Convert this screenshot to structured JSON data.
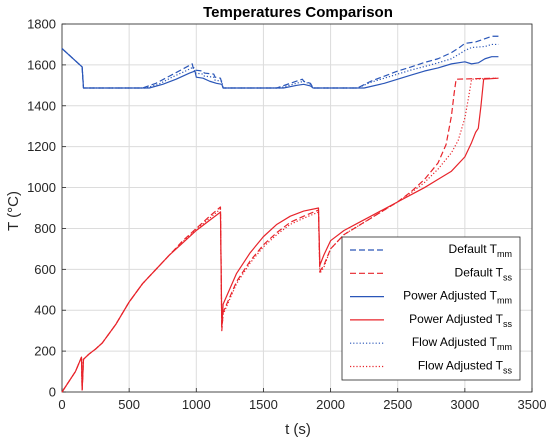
{
  "chart_data": {
    "type": "line",
    "title": "Temperatures Comparison",
    "xlabel": "t (s)",
    "ylabel": "T (°C)",
    "xlim": [
      0,
      3500
    ],
    "ylim": [
      0,
      1800
    ],
    "xticks": [
      0,
      500,
      1000,
      1500,
      2000,
      2500,
      3000,
      3500
    ],
    "yticks": [
      0,
      200,
      400,
      600,
      800,
      1000,
      1200,
      1400,
      1600,
      1800
    ],
    "grid": true,
    "legend_position": "lower-right",
    "colors": {
      "blue": "#2a56b8",
      "red": "#e8242b"
    },
    "series": [
      {
        "name": "Default T",
        "subscript": "mm",
        "color": "blue",
        "dash": "dashed",
        "points": [
          [
            0,
            1680
          ],
          [
            150,
            1590
          ],
          [
            160,
            1487
          ],
          [
            600,
            1487
          ],
          [
            700,
            1510
          ],
          [
            800,
            1545
          ],
          [
            900,
            1580
          ],
          [
            970,
            1605
          ],
          [
            980,
            1575
          ],
          [
            1050,
            1570
          ],
          [
            1060,
            1560
          ],
          [
            1130,
            1555
          ],
          [
            1140,
            1540
          ],
          [
            1180,
            1535
          ],
          [
            1200,
            1487
          ],
          [
            1600,
            1487
          ],
          [
            1700,
            1510
          ],
          [
            1790,
            1530
          ],
          [
            1800,
            1520
          ],
          [
            1850,
            1510
          ],
          [
            1870,
            1487
          ],
          [
            2200,
            1487
          ],
          [
            2300,
            1520
          ],
          [
            2400,
            1545
          ],
          [
            2500,
            1570
          ],
          [
            2600,
            1590
          ],
          [
            2700,
            1612
          ],
          [
            2800,
            1630
          ],
          [
            2900,
            1660
          ],
          [
            2960,
            1685
          ],
          [
            3000,
            1705
          ],
          [
            3080,
            1712
          ],
          [
            3200,
            1740
          ],
          [
            3250,
            1740
          ]
        ]
      },
      {
        "name": "Default T",
        "subscript": "ss",
        "color": "red",
        "dash": "dashed",
        "points": [
          [
            0,
            0
          ],
          [
            50,
            50
          ],
          [
            100,
            100
          ],
          [
            145,
            170
          ],
          [
            150,
            10
          ],
          [
            160,
            160
          ],
          [
            200,
            185
          ],
          [
            250,
            210
          ],
          [
            300,
            240
          ],
          [
            400,
            330
          ],
          [
            500,
            440
          ],
          [
            600,
            530
          ],
          [
            700,
            600
          ],
          [
            800,
            670
          ],
          [
            900,
            740
          ],
          [
            1000,
            800
          ],
          [
            1100,
            860
          ],
          [
            1180,
            905
          ],
          [
            1190,
            300
          ],
          [
            1200,
            390
          ],
          [
            1300,
            540
          ],
          [
            1400,
            640
          ],
          [
            1500,
            720
          ],
          [
            1600,
            780
          ],
          [
            1700,
            830
          ],
          [
            1800,
            860
          ],
          [
            1910,
            890
          ],
          [
            1920,
            590
          ],
          [
            1950,
            620
          ],
          [
            2000,
            700
          ],
          [
            2100,
            770
          ],
          [
            2200,
            810
          ],
          [
            2300,
            850
          ],
          [
            2400,
            890
          ],
          [
            2500,
            930
          ],
          [
            2600,
            980
          ],
          [
            2700,
            1040
          ],
          [
            2800,
            1120
          ],
          [
            2860,
            1210
          ],
          [
            2900,
            1350
          ],
          [
            2920,
            1460
          ],
          [
            2935,
            1530
          ],
          [
            3220,
            1535
          ]
        ]
      },
      {
        "name": "Power Adjusted T",
        "subscript": "mm",
        "color": "blue",
        "dash": "solid",
        "points": [
          [
            0,
            1680
          ],
          [
            150,
            1590
          ],
          [
            160,
            1487
          ],
          [
            650,
            1487
          ],
          [
            750,
            1505
          ],
          [
            850,
            1530
          ],
          [
            950,
            1560
          ],
          [
            990,
            1570
          ],
          [
            1000,
            1540
          ],
          [
            1050,
            1535
          ],
          [
            1100,
            1520
          ],
          [
            1150,
            1510
          ],
          [
            1190,
            1505
          ],
          [
            1200,
            1487
          ],
          [
            1650,
            1487
          ],
          [
            1750,
            1500
          ],
          [
            1800,
            1505
          ],
          [
            1850,
            1497
          ],
          [
            1870,
            1487
          ],
          [
            2250,
            1487
          ],
          [
            2400,
            1510
          ],
          [
            2500,
            1530
          ],
          [
            2600,
            1550
          ],
          [
            2700,
            1570
          ],
          [
            2800,
            1585
          ],
          [
            2900,
            1605
          ],
          [
            3000,
            1615
          ],
          [
            3050,
            1605
          ],
          [
            3100,
            1610
          ],
          [
            3150,
            1630
          ],
          [
            3200,
            1640
          ],
          [
            3250,
            1640
          ]
        ]
      },
      {
        "name": "Power Adjusted T",
        "subscript": "ss",
        "color": "red",
        "dash": "solid",
        "points": [
          [
            0,
            0
          ],
          [
            50,
            50
          ],
          [
            100,
            100
          ],
          [
            145,
            170
          ],
          [
            150,
            10
          ],
          [
            160,
            160
          ],
          [
            200,
            185
          ],
          [
            250,
            210
          ],
          [
            300,
            240
          ],
          [
            400,
            330
          ],
          [
            500,
            440
          ],
          [
            600,
            530
          ],
          [
            700,
            600
          ],
          [
            800,
            670
          ],
          [
            900,
            730
          ],
          [
            1000,
            790
          ],
          [
            1100,
            840
          ],
          [
            1180,
            880
          ],
          [
            1190,
            320
          ],
          [
            1200,
            430
          ],
          [
            1300,
            580
          ],
          [
            1400,
            680
          ],
          [
            1500,
            760
          ],
          [
            1600,
            820
          ],
          [
            1700,
            860
          ],
          [
            1800,
            885
          ],
          [
            1910,
            900
          ],
          [
            1920,
            620
          ],
          [
            1950,
            670
          ],
          [
            2000,
            740
          ],
          [
            2100,
            790
          ],
          [
            2200,
            825
          ],
          [
            2300,
            860
          ],
          [
            2400,
            895
          ],
          [
            2500,
            930
          ],
          [
            2600,
            965
          ],
          [
            2700,
            1000
          ],
          [
            2800,
            1040
          ],
          [
            2900,
            1080
          ],
          [
            3000,
            1150
          ],
          [
            3050,
            1220
          ],
          [
            3080,
            1270
          ],
          [
            3100,
            1290
          ],
          [
            3120,
            1400
          ],
          [
            3140,
            1530
          ],
          [
            3250,
            1535
          ]
        ]
      },
      {
        "name": "Flow Adjusted T",
        "subscript": "mm",
        "color": "blue",
        "dash": "dotted",
        "points": [
          [
            0,
            1680
          ],
          [
            150,
            1590
          ],
          [
            160,
            1487
          ],
          [
            620,
            1487
          ],
          [
            720,
            1505
          ],
          [
            820,
            1540
          ],
          [
            920,
            1570
          ],
          [
            980,
            1590
          ],
          [
            990,
            1560
          ],
          [
            1050,
            1555
          ],
          [
            1060,
            1545
          ],
          [
            1130,
            1540
          ],
          [
            1140,
            1525
          ],
          [
            1190,
            1520
          ],
          [
            1200,
            1487
          ],
          [
            1620,
            1487
          ],
          [
            1720,
            1505
          ],
          [
            1800,
            1520
          ],
          [
            1850,
            1505
          ],
          [
            1870,
            1487
          ],
          [
            2200,
            1487
          ],
          [
            2300,
            1515
          ],
          [
            2400,
            1535
          ],
          [
            2500,
            1555
          ],
          [
            2600,
            1575
          ],
          [
            2700,
            1592
          ],
          [
            2800,
            1610
          ],
          [
            2900,
            1630
          ],
          [
            3000,
            1670
          ],
          [
            3050,
            1685
          ],
          [
            3150,
            1690
          ],
          [
            3200,
            1700
          ],
          [
            3250,
            1700
          ]
        ]
      },
      {
        "name": "Flow Adjusted T",
        "subscript": "ss",
        "color": "red",
        "dash": "dotted",
        "points": [
          [
            0,
            0
          ],
          [
            50,
            50
          ],
          [
            100,
            100
          ],
          [
            145,
            170
          ],
          [
            150,
            10
          ],
          [
            160,
            160
          ],
          [
            200,
            185
          ],
          [
            250,
            210
          ],
          [
            300,
            240
          ],
          [
            400,
            330
          ],
          [
            500,
            440
          ],
          [
            600,
            530
          ],
          [
            700,
            600
          ],
          [
            800,
            670
          ],
          [
            900,
            735
          ],
          [
            1000,
            795
          ],
          [
            1100,
            850
          ],
          [
            1180,
            895
          ],
          [
            1190,
            310
          ],
          [
            1200,
            380
          ],
          [
            1300,
            530
          ],
          [
            1400,
            630
          ],
          [
            1500,
            710
          ],
          [
            1600,
            770
          ],
          [
            1700,
            820
          ],
          [
            1800,
            850
          ],
          [
            1910,
            880
          ],
          [
            1920,
            580
          ],
          [
            1950,
            610
          ],
          [
            2000,
            700
          ],
          [
            2100,
            770
          ],
          [
            2200,
            810
          ],
          [
            2300,
            850
          ],
          [
            2400,
            890
          ],
          [
            2500,
            930
          ],
          [
            2600,
            975
          ],
          [
            2700,
            1025
          ],
          [
            2800,
            1090
          ],
          [
            2900,
            1170
          ],
          [
            2950,
            1230
          ],
          [
            3000,
            1340
          ],
          [
            3030,
            1450
          ],
          [
            3050,
            1530
          ],
          [
            3250,
            1535
          ]
        ]
      }
    ]
  }
}
